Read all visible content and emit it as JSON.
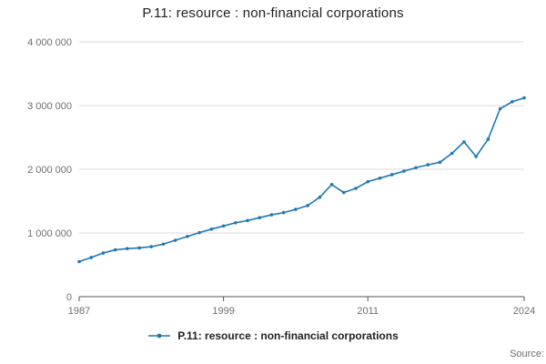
{
  "page": {
    "title": "P.11: resource : non-financial corporations",
    "source_label": "Source:"
  },
  "legend": {
    "label": "P.11: resource : non-financial corporations"
  },
  "colors": {
    "line": "#1f78b4",
    "gridline": "#d9d9d9",
    "axis": "#555555",
    "tick_text": "#6e6e6e"
  },
  "chart_data": {
    "type": "line",
    "title": "P.11: resource : non-financial corporations",
    "xlabel": "",
    "ylabel": "",
    "grid": true,
    "legend_position": "bottom",
    "marker": "circle",
    "line_color": "#1f78b4",
    "ylim": [
      0,
      4000000
    ],
    "yticks": [
      0,
      1000000,
      2000000,
      3000000,
      4000000
    ],
    "ytick_labels": [
      "0",
      "1 000 000",
      "2 000 000",
      "3 000 000",
      "4 000 000"
    ],
    "xticks": [
      1987,
      1999,
      2011,
      2024
    ],
    "xtick_labels": [
      "1987",
      "1999",
      "2011",
      "2024"
    ],
    "x": [
      1987,
      1988,
      1989,
      1990,
      1991,
      1992,
      1993,
      1994,
      1995,
      1996,
      1997,
      1998,
      1999,
      2000,
      2001,
      2002,
      2003,
      2004,
      2005,
      2006,
      2007,
      2008,
      2009,
      2010,
      2011,
      2012,
      2013,
      2014,
      2015,
      2016,
      2017,
      2018,
      2019,
      2020,
      2021,
      2022,
      2023,
      2024
    ],
    "series": [
      {
        "name": "P.11: resource : non-financial corporations",
        "values": [
          550000,
          615000,
          685000,
          735000,
          755000,
          765000,
          785000,
          825000,
          885000,
          945000,
          1005000,
          1060000,
          1110000,
          1160000,
          1195000,
          1240000,
          1285000,
          1320000,
          1370000,
          1430000,
          1560000,
          1760000,
          1635000,
          1700000,
          1805000,
          1860000,
          1915000,
          1970000,
          2025000,
          2070000,
          2110000,
          2250000,
          2430000,
          2200000,
          2470000,
          2950000,
          3060000,
          3120000
        ]
      }
    ]
  }
}
